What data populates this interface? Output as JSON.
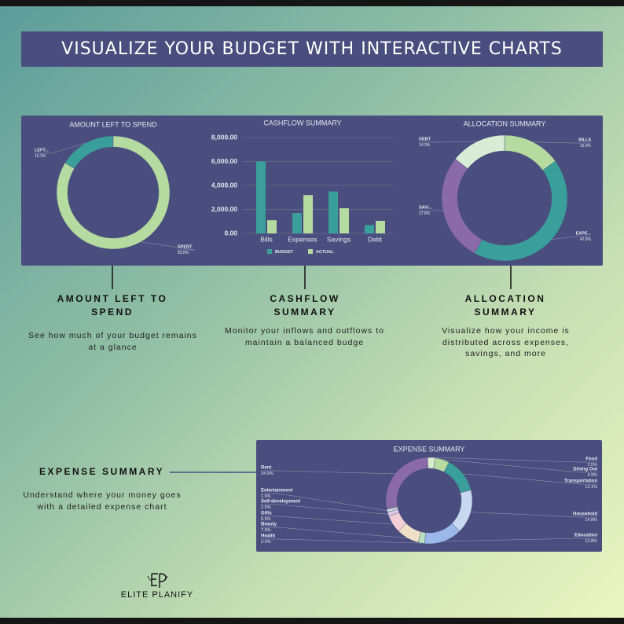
{
  "header": {
    "title": "VISUALIZE YOUR BUDGET WITH INTERACTIVE CHARTS"
  },
  "chart_data": [
    {
      "type": "pie",
      "title": "AMOUNT LEFT TO SPEND",
      "categories": [
        "LEFT...",
        "SPENT"
      ],
      "values": [
        16.2,
        83.8
      ],
      "value_labels": [
        "16.2%",
        "83.8%"
      ],
      "colors": [
        "#3a9e9a",
        "#b5dba0"
      ]
    },
    {
      "type": "bar",
      "title": "CASHFLOW SUMMARY",
      "categories": [
        "Bills",
        "Expenses",
        "Savings",
        "Debt"
      ],
      "series": [
        {
          "name": "BUDGET",
          "color": "#3a9e9a",
          "values": [
            6000,
            1700,
            3500,
            700
          ]
        },
        {
          "name": "ACTUAL",
          "color": "#b5dba0",
          "values": [
            1100,
            3200,
            2100,
            1050
          ]
        }
      ],
      "ylim": [
        0,
        8000
      ],
      "yticks": [
        {
          "value": 0,
          "label": "0.00"
        },
        {
          "value": 2000,
          "label": "2,000.00"
        },
        {
          "value": 4000,
          "label": "4,000.00"
        },
        {
          "value": 6000,
          "label": "6,000.00"
        },
        {
          "value": 8000,
          "label": "8,000.00"
        }
      ],
      "grid": true,
      "legend": "bottom"
    },
    {
      "type": "pie",
      "title": "ALLOCATION SUMMARY",
      "categories": [
        "BILLS",
        "EXPE...",
        "SAVI...",
        "DEBT"
      ],
      "values": [
        15.0,
        42.9,
        27.8,
        14.3
      ],
      "value_labels": [
        "15.0%",
        "42.9%",
        "27.8%",
        "14.3%"
      ],
      "colors": [
        "#b5dba0",
        "#3a9e9a",
        "#8a6aa8",
        "#d9ecd5"
      ]
    },
    {
      "type": "pie",
      "title": "EXPENSE SUMMARY",
      "categories": [
        "Food",
        "Dining Out",
        "Transportation",
        "Household",
        "Education",
        "Health",
        "Beauty",
        "Gifts",
        "Self-development",
        "Entertainment",
        "Rent"
      ],
      "values": [
        2.5,
        4.9,
        12.1,
        14.8,
        12.8,
        2.2,
        7.6,
        5.9,
        1.5,
        1.0,
        24.9
      ],
      "value_labels": [
        "2.5%",
        "4.9%",
        "12.1%",
        "14.8%",
        "12.8%",
        "2.2%",
        "7.6%",
        "5.9%",
        "1.5%",
        "1.0%",
        "24.9%"
      ],
      "colors": [
        "#d8ecd0",
        "#b5dba0",
        "#3a9e9a",
        "#c8d8f0",
        "#9ab8e8",
        "#b8e0c0",
        "#f0e0c8",
        "#f3d0d8",
        "#e0c8e8",
        "#c8e0d8",
        "#8a6aa8"
      ]
    }
  ],
  "sections": [
    {
      "title": "AMOUNT LEFT TO SPEND",
      "description": "See how much of your budget remains at a glance"
    },
    {
      "title": "CASHFLOW SUMMARY",
      "description": "Monitor your inflows and outflows to maintain a balanced budge"
    },
    {
      "title": "ALLOCATION SUMMARY",
      "description": "Visualize how your income is distributed across expenses, savings, and more"
    },
    {
      "title": "EXPENSE SUMMARY",
      "description": "Understand where your money goes with a detailed expense chart"
    }
  ],
  "brand": {
    "name": "ELITE PLANIFY"
  }
}
